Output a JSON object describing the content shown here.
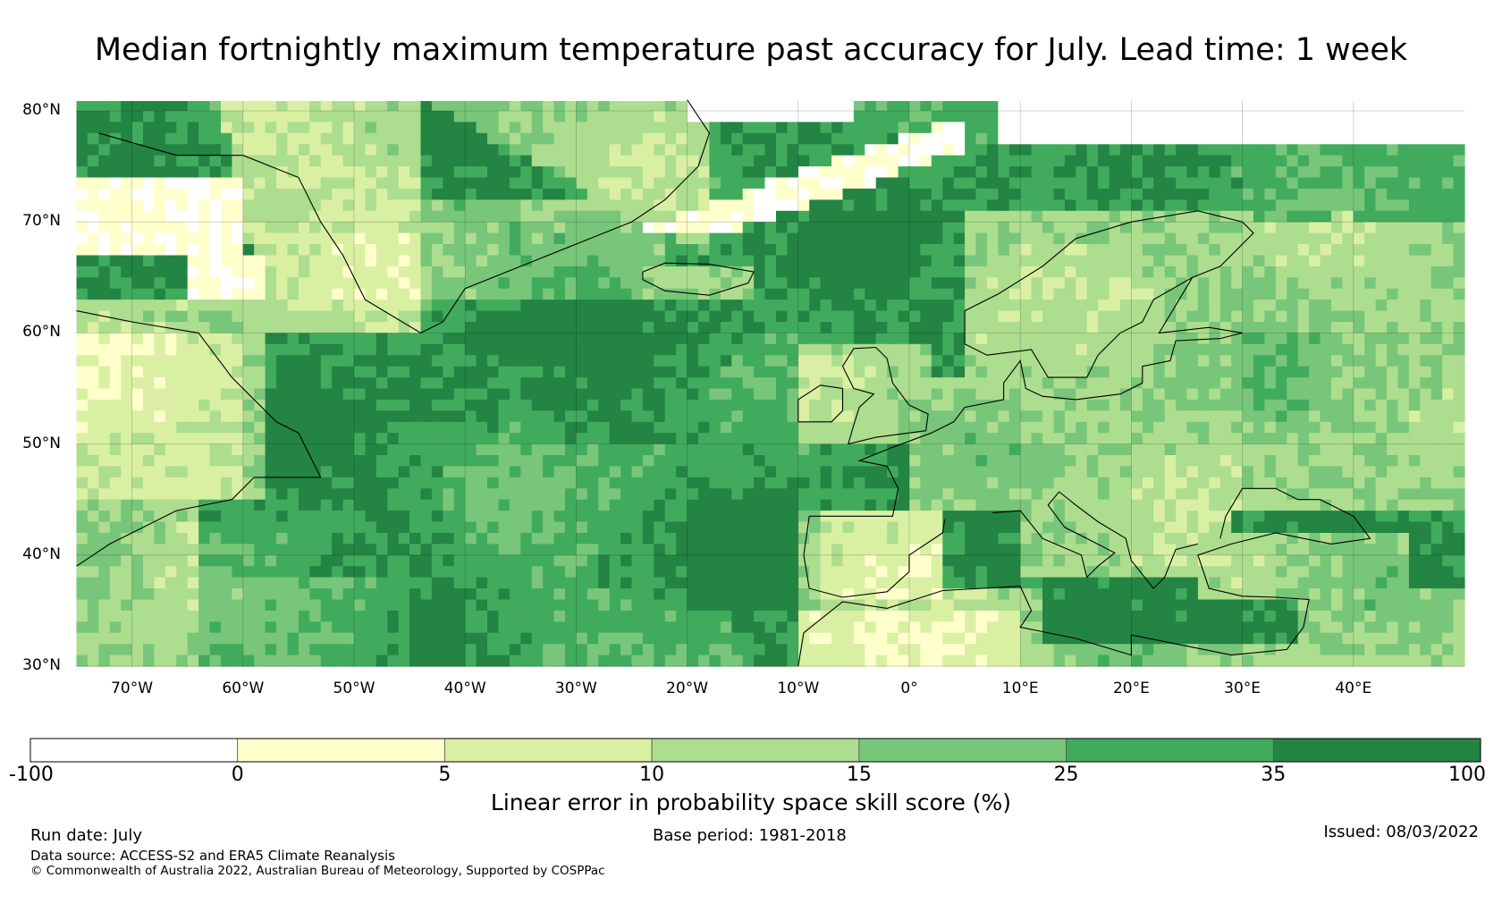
{
  "title": "Median fortnightly maximum temperature past accuracy for July. Lead time: 1 week",
  "map": {
    "region": "North Atlantic and Europe",
    "lon_range": [
      -75,
      50
    ],
    "lat_range": [
      30,
      81
    ],
    "lat_labels": [
      "80°N",
      "70°N",
      "60°N",
      "50°N",
      "40°N",
      "30°N"
    ],
    "lat_values": [
      80,
      70,
      60,
      50,
      40,
      30
    ],
    "lon_labels": [
      "70°W",
      "60°W",
      "50°W",
      "40°W",
      "30°W",
      "20°W",
      "10°W",
      "0°",
      "10°E",
      "20°E",
      "30°E",
      "40°E"
    ],
    "lon_values": [
      -70,
      -60,
      -50,
      -40,
      -30,
      -20,
      -10,
      0,
      10,
      20,
      30,
      40
    ],
    "gridlines": true,
    "coastlines": true
  },
  "colorbar": {
    "boundaries": [
      -100,
      0,
      5,
      10,
      15,
      25,
      35,
      100
    ],
    "tick_labels": [
      "-100",
      "0",
      "5",
      "10",
      "15",
      "25",
      "35",
      "100"
    ],
    "colors": [
      "#ffffff",
      "#ffffcc",
      "#d9f0a3",
      "#addd8e",
      "#78c679",
      "#41ab5d",
      "#238443"
    ],
    "label": "Linear error in probability space skill score (%)"
  },
  "footer": {
    "run_date": "Run date: July",
    "base_period": "Base period: 1981-2018",
    "issued": "Issued: 08/03/2022",
    "data_source": "Data source: ACCESS-S2 and ERA5 Climate Reanalysis",
    "copyright": "© Commonwealth of Australia 2022, Australian Bureau of Meteorology, Supported by COSPPac"
  }
}
